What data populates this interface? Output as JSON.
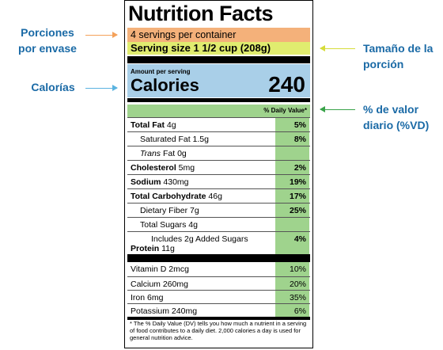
{
  "annotations": {
    "servings": [
      "Porciones",
      "por envase"
    ],
    "calories": "Calorías",
    "serving_size": [
      "Tamaño de la",
      "porción"
    ],
    "daily_value": [
      "% de valor",
      "diario (%VD)"
    ]
  },
  "colors": {
    "servings": "#f4b17a",
    "serving_size": "#e0ec6f",
    "calories": "#a9cfe8",
    "daily_value": "#9fd38d",
    "annotation_text": "#1a6aa6"
  },
  "label": {
    "title": "Nutrition Facts",
    "servings": "4 servings per container",
    "serving_size": "Serving size 1 1/2 cup (208g)",
    "amount_per_serving": "Amount per serving",
    "calories_label": "Calories",
    "calories_value": "240",
    "dv_header": "% Daily Value*",
    "nutrients": [
      {
        "bold": "Total Fat",
        "amount": " 4g",
        "dv": "5%"
      },
      {
        "bold": "",
        "amount": "Saturated Fat 1.5g",
        "dv": "8%"
      },
      {
        "italic": "Trans",
        "amount": " Fat 0g",
        "dv": ""
      },
      {
        "bold": "Cholesterol",
        "amount": " 5mg",
        "dv": "2%"
      },
      {
        "bold": "Sodium",
        "amount": " 430mg",
        "dv": "19%"
      },
      {
        "bold": "Total Carbohydrate",
        "amount": " 46g",
        "dv": "17%"
      },
      {
        "bold": "",
        "amount": "Dietary Fiber 7g",
        "dv": "25%"
      },
      {
        "bold": "",
        "amount": "Total Sugars 4g",
        "dv": ""
      },
      {
        "bold": "",
        "amount": "Includes 2g Added Sugars",
        "dv": "4%"
      },
      {
        "bold": "Protein",
        "amount": " 11g",
        "dv": ""
      }
    ],
    "vitamins": [
      {
        "name": "Vitamin D 2mcg",
        "dv": "10%"
      },
      {
        "name": "Calcium 260mg",
        "dv": "20%"
      },
      {
        "name": "Iron 6mg",
        "dv": "35%"
      },
      {
        "name": "Potassium 240mg",
        "dv": "6%"
      }
    ],
    "footnote": "* The % Daily Value (DV) tells you how much a nutrient in a serving of food contributes to a daily diet. 2,000 calories a day is used for general nutrition advice."
  }
}
